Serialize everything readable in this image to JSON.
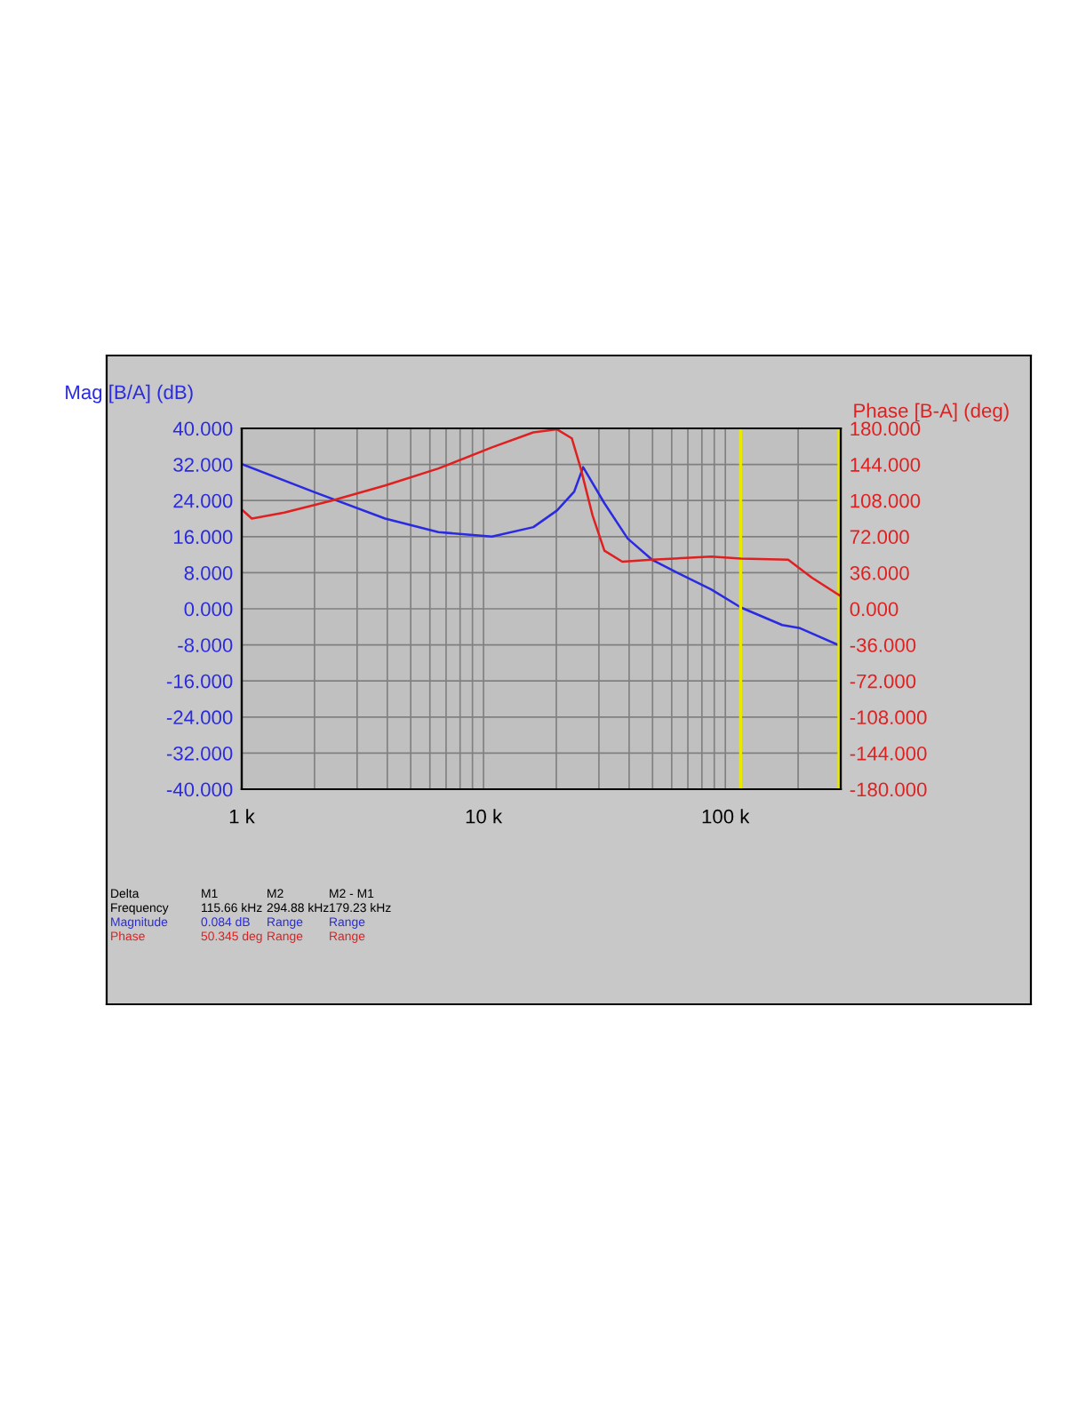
{
  "chart_data": {
    "type": "line",
    "ylabel": "Mag [B/A] (dB)",
    "y2label": "Phase [B-A] (deg)",
    "log": "x",
    "grid": true,
    "legend": false,
    "xlim": [
      1000,
      300000
    ],
    "xticks": [
      {
        "value": 1000,
        "label": "1 k"
      },
      {
        "value": 10000,
        "label": "10 k"
      },
      {
        "value": 100000,
        "label": "100 k"
      }
    ],
    "ylim": [
      -40,
      40
    ],
    "yticks": [
      {
        "value": -40,
        "label": "-40.000"
      },
      {
        "value": -32,
        "label": "-32.000"
      },
      {
        "value": -24,
        "label": "-24.000"
      },
      {
        "value": -16,
        "label": "-16.000"
      },
      {
        "value": -8,
        "label": "-8.000"
      },
      {
        "value": 0,
        "label": "0.000"
      },
      {
        "value": 8,
        "label": "8.000"
      },
      {
        "value": 16,
        "label": "16.000"
      },
      {
        "value": 24,
        "label": "24.000"
      },
      {
        "value": 32,
        "label": "32.000"
      },
      {
        "value": 40,
        "label": "40.000"
      }
    ],
    "y2lim": [
      -180,
      180
    ],
    "y2ticks": [
      {
        "value": -180,
        "label": "-180.000"
      },
      {
        "value": -144,
        "label": "-144.000"
      },
      {
        "value": -108,
        "label": "-108.000"
      },
      {
        "value": -72,
        "label": "-72.000"
      },
      {
        "value": -36,
        "label": "-36.000"
      },
      {
        "value": 0,
        "label": "0.000"
      },
      {
        "value": 36,
        "label": "36.000"
      },
      {
        "value": 72,
        "label": "72.000"
      },
      {
        "value": 108,
        "label": "108.000"
      },
      {
        "value": 144,
        "label": "144.000"
      },
      {
        "value": 180,
        "label": "180.000"
      }
    ],
    "series": [
      {
        "color": "#2a2ae0",
        "x": [
          1012,
          1991,
          3920,
          6510,
          10830,
          16070,
          20130,
          23720,
          25820,
          31620,
          39430,
          50000,
          62200,
          87300,
          115900,
          171800,
          203700,
          298000
        ],
        "values": [
          32,
          25.9,
          20,
          17,
          16,
          18.1,
          21.8,
          26,
          31.4,
          23.4,
          15.6,
          10.8,
          8.2,
          4.3,
          0.3,
          -3.6,
          -4.3,
          -8.2
        ]
      },
      {
        "color": "#e02020",
        "axis": "y2",
        "x": [
          1012,
          1101,
          1500,
          2360,
          3920,
          6510,
          10830,
          16070,
          20130,
          23190,
          25240,
          28250,
          31620,
          37480,
          49700,
          87300,
          115900,
          181900,
          228000,
          298000
        ],
        "values": [
          98,
          90,
          96,
          108,
          123,
          140,
          161,
          176,
          179,
          170,
          140,
          93,
          58,
          47,
          49,
          52,
          50,
          49,
          31,
          13
        ]
      }
    ],
    "ref_lines": [
      {
        "axis": "x",
        "value": 115660,
        "color": "#e8e800"
      },
      {
        "axis": "x",
        "value": 294880,
        "color": "#e8e800"
      }
    ],
    "annotations": [
      "Delta",
      "M1",
      "M2",
      "M2 - M1",
      "Frequency",
      "115.66 kHz",
      "294.88 kHz",
      "179.23 kHz",
      "Magnitude",
      "0.084 dB",
      "Range",
      "Range",
      "Phase",
      "50.345 deg",
      "Range",
      "Range"
    ]
  }
}
